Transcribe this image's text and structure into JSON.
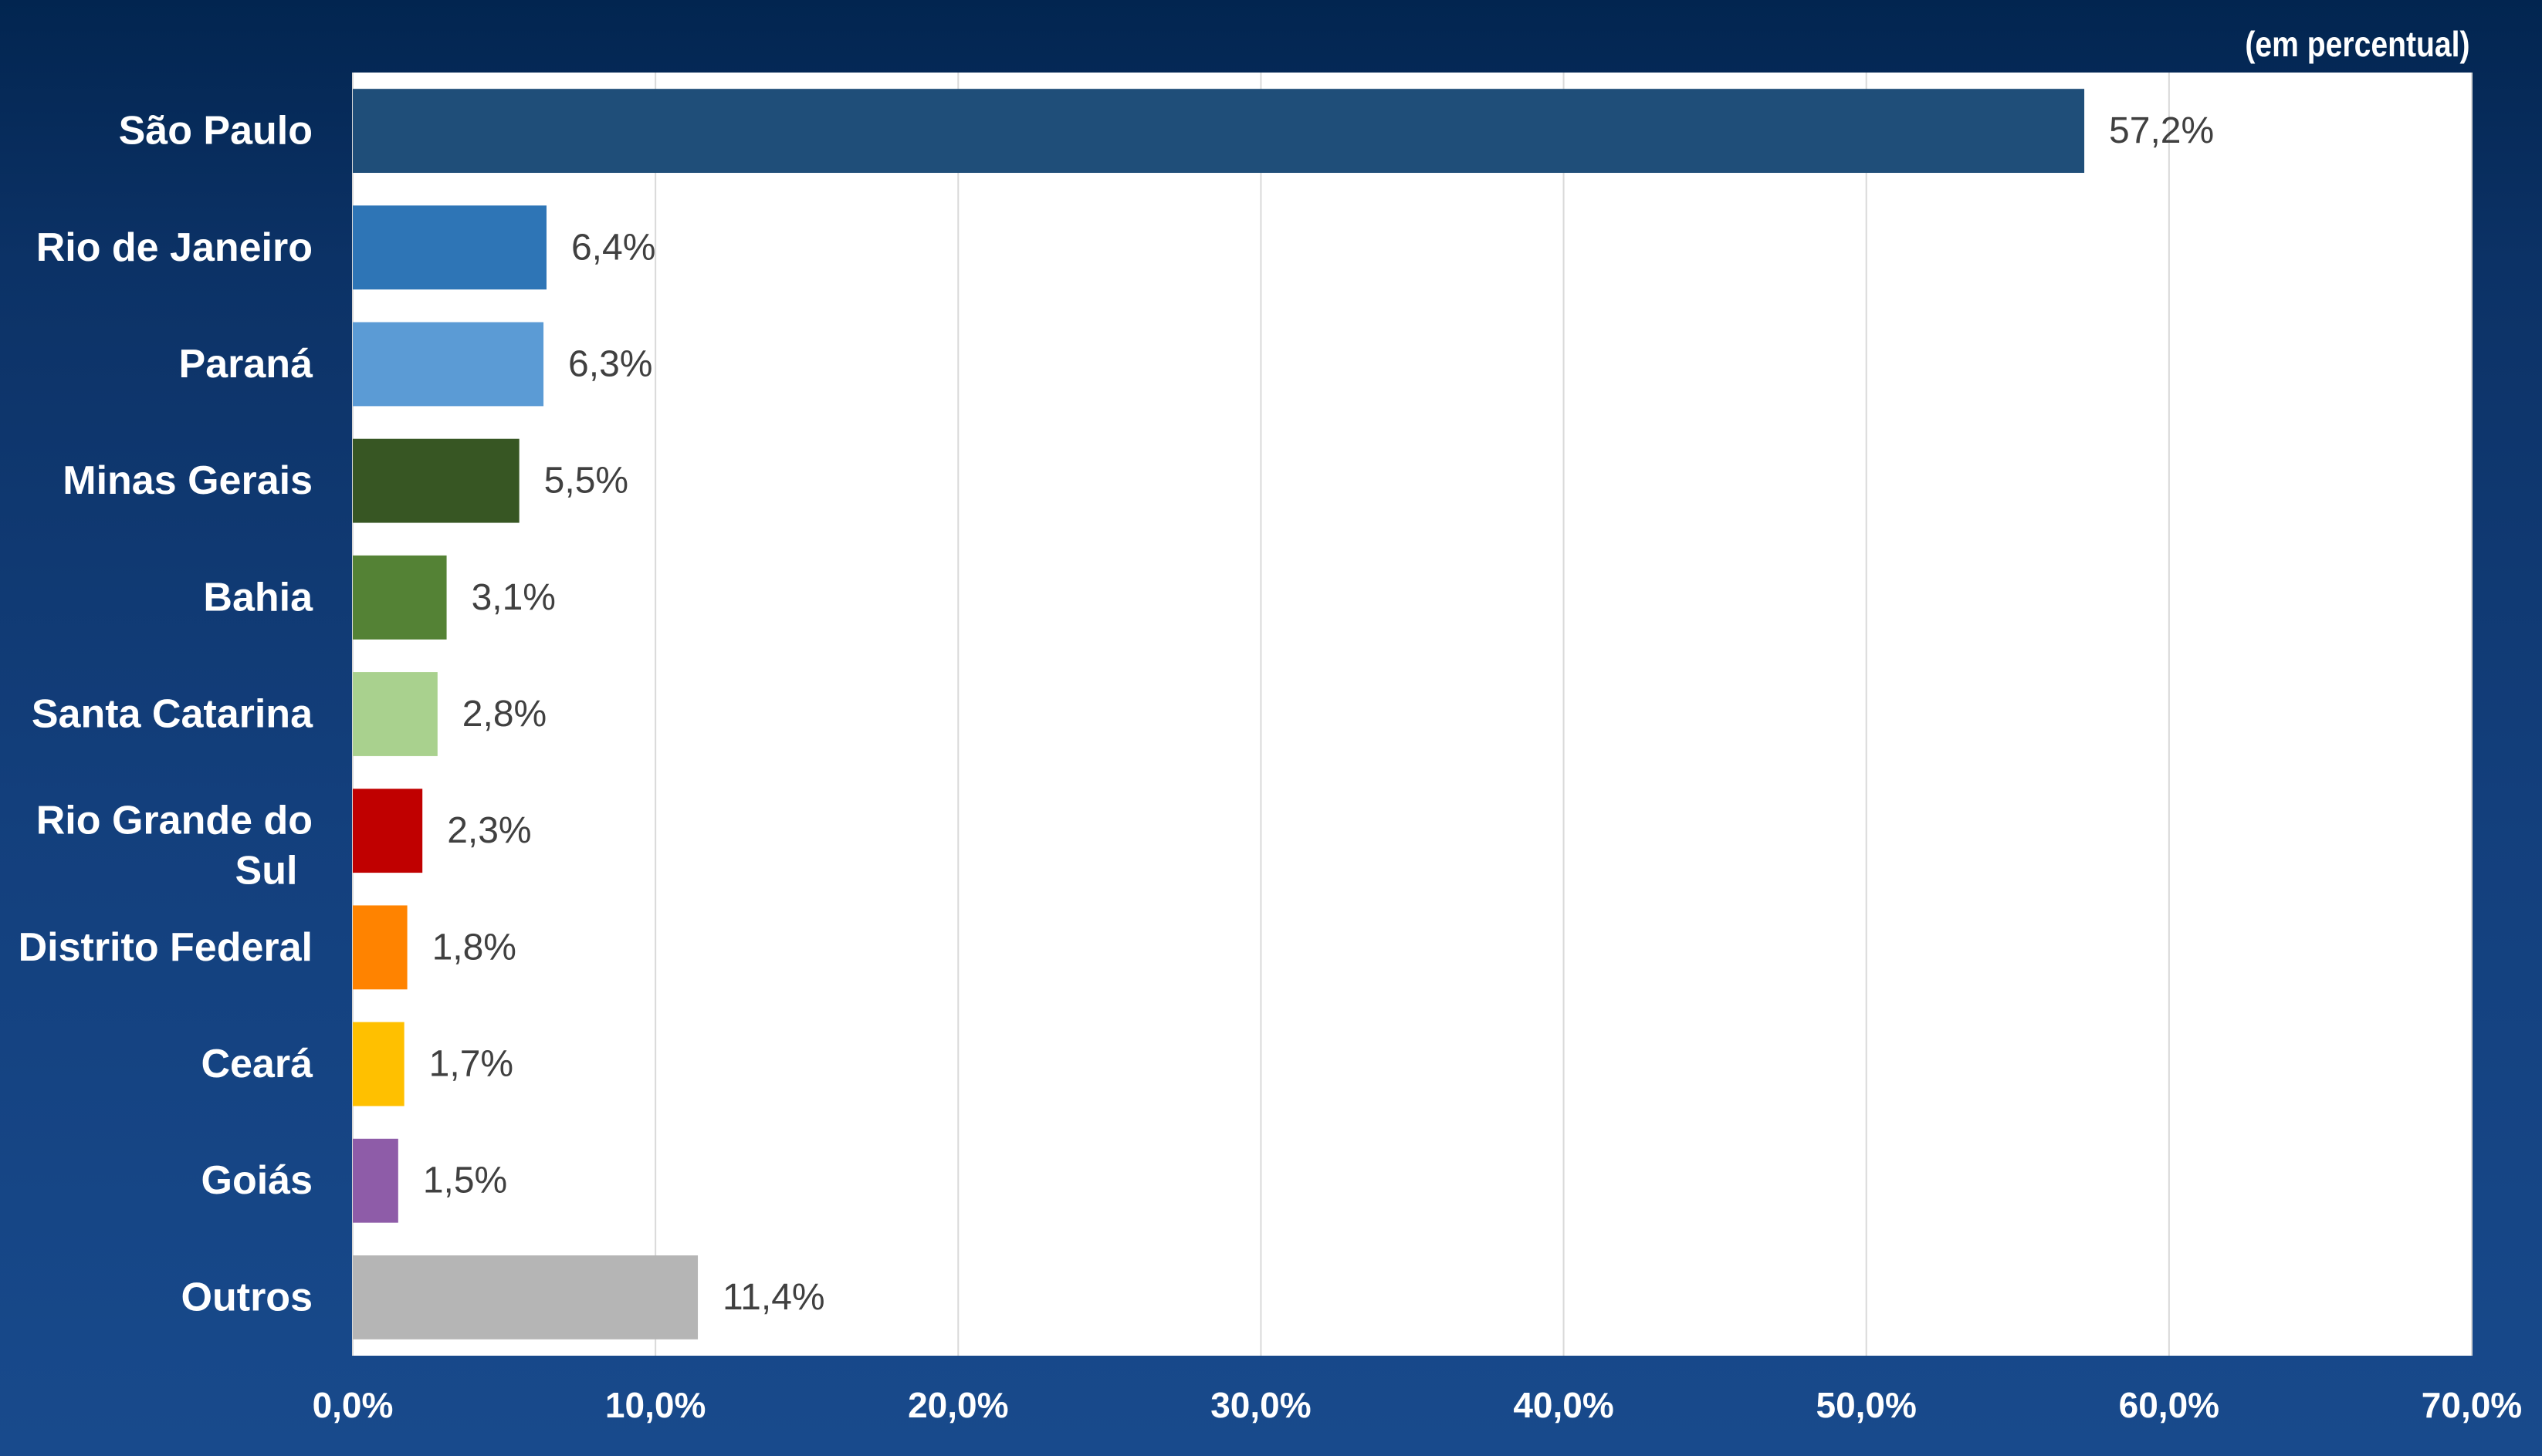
{
  "chart_data": {
    "type": "bar",
    "orientation": "horizontal",
    "unit_note": "(em percentual)",
    "title": "",
    "xlabel": "",
    "ylabel": "",
    "xlim": [
      0,
      70
    ],
    "x_ticks": [
      0,
      10,
      20,
      30,
      40,
      50,
      60,
      70
    ],
    "x_tick_labels": [
      "0,0%",
      "10,0%",
      "20,0%",
      "30,0%",
      "40,0%",
      "50,0%",
      "60,0%",
      "70,0%"
    ],
    "grid": "vertical",
    "legend": "none",
    "categories": [
      "São Paulo",
      "Rio de Janeiro",
      "Paraná",
      "Minas Gerais",
      "Bahia",
      "Santa Catarina",
      "Rio Grande do Sul",
      "Distrito Federal",
      "Ceará",
      "Goiás",
      "Outros"
    ],
    "values": [
      57.2,
      6.4,
      6.3,
      5.5,
      3.1,
      2.8,
      2.3,
      1.8,
      1.7,
      1.5,
      11.4
    ],
    "data_labels": [
      "57,2%",
      "6,4%",
      "6,3%",
      "5,5%",
      "3,1%",
      "2,8%",
      "2,3%",
      "1,8%",
      "1,7%",
      "1,5%",
      "11,4%"
    ],
    "colors": [
      "#1f4e79",
      "#2e75b6",
      "#5b9bd5",
      "#375623",
      "#548235",
      "#a9d18e",
      "#c00000",
      "#ff8300",
      "#ffc000",
      "#8e5ca8",
      "#b5b5b5"
    ]
  }
}
